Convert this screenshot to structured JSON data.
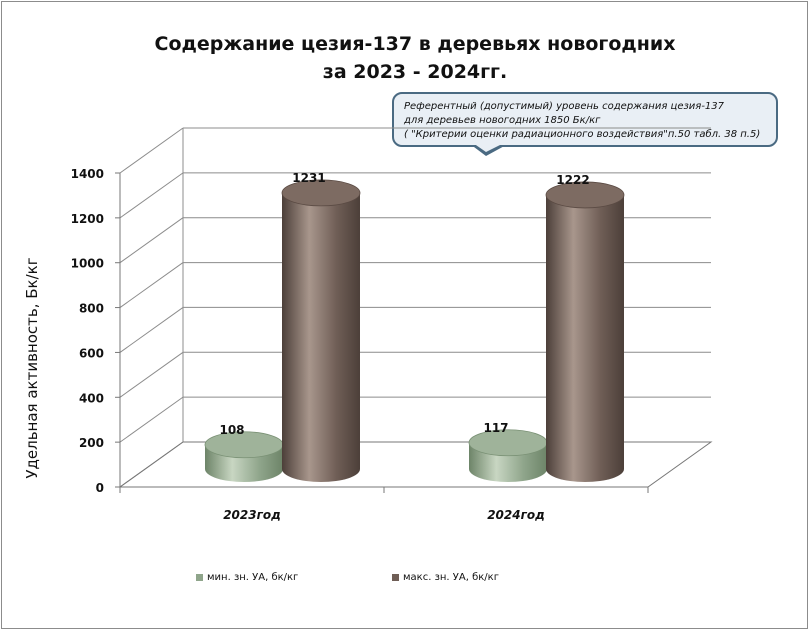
{
  "chart_data": {
    "type": "bar",
    "title": [
      "Содержание цезия-137 в деревьях новогодних",
      "за 2023 - 2024гг."
    ],
    "ylabel": "Удельная активность, Бк/кг",
    "xlabel": "",
    "categories": [
      "2023год",
      "2024год"
    ],
    "series": [
      {
        "name": "мин. зн. УА, бк/кг",
        "values": [
          108,
          117
        ],
        "color": "#8fa58b"
      },
      {
        "name": "макс. зн. УА, бк/кг",
        "values": [
          1231,
          1222
        ],
        "color": "#6f5e56"
      }
    ],
    "ylim": [
      0,
      1400
    ],
    "yticks": [
      "0",
      "200",
      "400",
      "600",
      "800",
      "1000",
      "1200",
      "1400"
    ],
    "grid": true,
    "legend": "bottom",
    "annotation": [
      "Референтный (допустимый) уровень содержания цезия-137",
      "для деревьев новогодних  1850 Бк/кг",
      "( \"Критерии оценки радиационного воздействия\"п.50  табл. 38 п.5)"
    ]
  }
}
